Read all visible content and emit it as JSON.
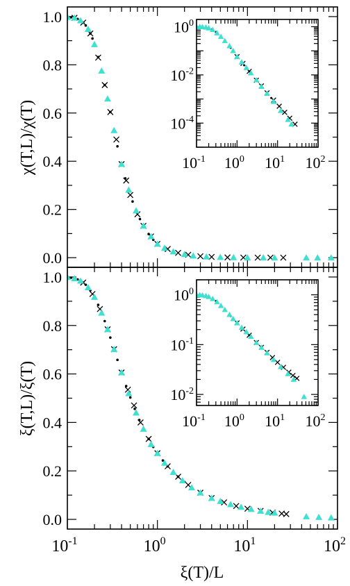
{
  "chart_data": [
    {
      "id": "top-main",
      "type": "scatter",
      "title": "",
      "xlabel": "",
      "ylabel": "χ(T,L)/χ(T)",
      "xscale": "log",
      "xlim": [
        0.1,
        100
      ],
      "ylim": [
        -0.04,
        1.04
      ],
      "y_tick_labels": [
        "0.0",
        "0.2",
        "0.4",
        "0.6",
        "0.8",
        "1.0"
      ],
      "y_tick_values": [
        0,
        0.2,
        0.4,
        0.6,
        0.8,
        1.0
      ],
      "grid": false,
      "legend": "none",
      "series": [
        {
          "marker": "dot",
          "color": "#000000",
          "x": [
            0.1,
            0.11,
            0.12,
            0.13,
            0.14,
            0.15,
            0.16,
            0.17,
            0.18,
            0.19,
            0.2,
            0.22,
            0.24,
            0.26,
            0.28,
            0.3,
            0.33,
            0.36,
            0.4,
            0.44,
            0.48,
            0.53,
            0.58,
            0.64,
            0.7,
            0.8,
            0.9,
            1.0
          ],
          "y": [
            0.998,
            0.997,
            0.995,
            0.99,
            0.984,
            0.975,
            0.963,
            0.948,
            0.93,
            0.909,
            0.885,
            0.832,
            0.775,
            0.716,
            0.659,
            0.604,
            0.528,
            0.462,
            0.388,
            0.329,
            0.281,
            0.233,
            0.195,
            0.16,
            0.132,
            0.098,
            0.074,
            0.057
          ]
        },
        {
          "marker": "cross",
          "color": "#000000",
          "x": [
            0.12,
            0.15,
            0.18,
            0.22,
            0.26,
            0.3,
            0.35,
            0.4,
            0.45,
            0.5,
            0.6,
            0.7,
            0.85,
            1.0,
            1.3,
            1.7,
            2.2,
            3.0,
            4.0,
            6.0,
            9.0,
            13,
            18,
            25
          ],
          "y": [
            0.995,
            0.975,
            0.93,
            0.83,
            0.716,
            0.604,
            0.49,
            0.388,
            0.32,
            0.26,
            0.18,
            0.132,
            0.088,
            0.057,
            0.036,
            0.02,
            0.012,
            0.006,
            0.003,
            0.001,
            0.0005,
            0.0002,
            0.0001,
            0.0001
          ]
        },
        {
          "marker": "triangle",
          "color": "#40e0d0",
          "x": [
            0.1,
            0.12,
            0.14,
            0.17,
            0.2,
            0.24,
            0.28,
            0.33,
            0.4,
            0.48,
            0.58,
            0.7,
            0.85,
            1.0,
            1.2,
            1.5,
            2.0,
            2.5,
            3.5,
            5.0,
            7.0,
            10,
            15,
            20,
            45,
            60,
            85
          ],
          "y": [
            0.998,
            0.995,
            0.984,
            0.948,
            0.885,
            0.775,
            0.659,
            0.528,
            0.388,
            0.281,
            0.195,
            0.132,
            0.088,
            0.057,
            0.04,
            0.025,
            0.014,
            0.008,
            0.004,
            0.002,
            0.001,
            0.0005,
            0.0002,
            0.0001,
            0.0,
            0.0,
            0.0
          ]
        }
      ]
    },
    {
      "id": "top-inset",
      "type": "scatter",
      "xscale": "log",
      "yscale": "log",
      "xlim": [
        0.1,
        100
      ],
      "ylim": [
        1e-05,
        2
      ],
      "x_tick_labels": [
        "10",
        "10",
        "10",
        "10"
      ],
      "x_tick_exponents": [
        "-1",
        "0",
        "1",
        "2"
      ],
      "y_tick_labels": [
        "10",
        "10",
        "10"
      ],
      "y_tick_exponents": [
        "0",
        "-2",
        "-4"
      ],
      "series": [
        {
          "marker": "dot",
          "color": "#000000",
          "x": [
            0.1,
            0.12,
            0.14,
            0.17,
            0.2,
            0.24,
            0.3,
            0.4,
            0.5,
            0.7,
            1.0,
            1.5,
            2.0,
            3.0,
            4.0,
            5.5,
            7.0
          ],
          "y": [
            0.998,
            0.995,
            0.984,
            0.948,
            0.885,
            0.775,
            0.604,
            0.388,
            0.26,
            0.132,
            0.057,
            0.025,
            0.014,
            0.006,
            0.0035,
            0.0018,
            0.0011
          ]
        },
        {
          "marker": "cross",
          "color": "#000000",
          "x": [
            1.0,
            1.4,
            2.0,
            3.0,
            4.0,
            5.5,
            8.0,
            11,
            15,
            20,
            27
          ],
          "y": [
            0.057,
            0.03,
            0.014,
            0.006,
            0.0035,
            0.0018,
            0.0009,
            0.0005,
            0.00028,
            0.00016,
            9e-05
          ]
        },
        {
          "marker": "triangle",
          "color": "#40e0d0",
          "x": [
            0.1,
            0.12,
            0.14,
            0.17,
            0.2,
            0.25,
            0.32,
            0.4,
            0.5,
            0.65,
            0.8,
            1.0,
            1.3,
            1.7,
            2.2,
            3.0,
            4.0,
            5.5,
            8.0,
            12,
            18,
            22
          ],
          "y": [
            0.998,
            0.995,
            0.984,
            0.948,
            0.885,
            0.75,
            0.55,
            0.388,
            0.26,
            0.16,
            0.1,
            0.057,
            0.034,
            0.02,
            0.012,
            0.0062,
            0.0033,
            0.0017,
            0.00078,
            0.00033,
            0.00014,
            9e-05
          ]
        }
      ]
    },
    {
      "id": "bottom-main",
      "type": "scatter",
      "title": "",
      "xlabel": "ξ(T)/L",
      "ylabel": "ξ(T,L)/ξ(T)",
      "xscale": "log",
      "xlim": [
        0.1,
        100
      ],
      "ylim": [
        -0.04,
        1.04
      ],
      "x_tick_labels": [
        "10",
        "10",
        "10",
        "10"
      ],
      "x_tick_exponents": [
        "-1",
        "0",
        "1",
        "2"
      ],
      "y_tick_labels": [
        "0.0",
        "0.2",
        "0.4",
        "0.6",
        "0.8",
        "1.0"
      ],
      "y_tick_values": [
        0,
        0.2,
        0.4,
        0.6,
        0.8,
        1.0
      ],
      "grid": false,
      "legend": "none",
      "series": [
        {
          "marker": "dot",
          "color": "#000000",
          "x": [
            0.1,
            0.11,
            0.12,
            0.13,
            0.14,
            0.15,
            0.16,
            0.17,
            0.18,
            0.2,
            0.22,
            0.24,
            0.26,
            0.28,
            0.3,
            0.33,
            0.36,
            0.4,
            0.45,
            0.5,
            0.56,
            0.63,
            0.7,
            0.8,
            0.9,
            1.0,
            1.15,
            1.3,
            1.5,
            1.7,
            2.0
          ],
          "y": [
            0.999,
            0.997,
            0.994,
            0.99,
            0.984,
            0.977,
            0.968,
            0.957,
            0.945,
            0.917,
            0.885,
            0.852,
            0.818,
            0.784,
            0.75,
            0.702,
            0.658,
            0.606,
            0.55,
            0.503,
            0.456,
            0.41,
            0.373,
            0.332,
            0.299,
            0.273,
            0.243,
            0.219,
            0.195,
            0.176,
            0.154
          ]
        },
        {
          "marker": "cross",
          "color": "#000000",
          "x": [
            0.15,
            0.19,
            0.23,
            0.28,
            0.33,
            0.4,
            0.47,
            0.55,
            0.65,
            0.8,
            1.0,
            1.3,
            1.7,
            2.2,
            3.0,
            4.0,
            5.5,
            7.5,
            10,
            14,
            19,
            24,
            27
          ],
          "y": [
            0.977,
            0.93,
            0.868,
            0.784,
            0.702,
            0.606,
            0.535,
            0.47,
            0.4,
            0.332,
            0.273,
            0.219,
            0.176,
            0.142,
            0.11,
            0.088,
            0.07,
            0.055,
            0.044,
            0.035,
            0.028,
            0.024,
            0.022
          ]
        },
        {
          "marker": "triangle",
          "color": "#40e0d0",
          "x": [
            0.1,
            0.12,
            0.14,
            0.17,
            0.2,
            0.24,
            0.28,
            0.33,
            0.4,
            0.48,
            0.58,
            0.7,
            0.85,
            1.0,
            1.2,
            1.5,
            1.9,
            2.4,
            3.0,
            4.0,
            5.0,
            6.5,
            8.5,
            11,
            14,
            17,
            20,
            45,
            62,
            85
          ],
          "y": [
            0.999,
            0.994,
            0.984,
            0.957,
            0.917,
            0.852,
            0.784,
            0.702,
            0.606,
            0.52,
            0.44,
            0.373,
            0.31,
            0.273,
            0.233,
            0.195,
            0.16,
            0.131,
            0.11,
            0.088,
            0.075,
            0.062,
            0.051,
            0.042,
            0.035,
            0.03,
            0.027,
            0.012,
            0.009,
            0.007
          ]
        }
      ]
    },
    {
      "id": "bottom-inset",
      "type": "scatter",
      "xscale": "log",
      "yscale": "log",
      "xlim": [
        0.1,
        100
      ],
      "ylim": [
        0.006,
        2
      ],
      "x_tick_labels": [
        "10",
        "10",
        "10",
        "10"
      ],
      "x_tick_exponents": [
        "-1",
        "0",
        "1",
        "2"
      ],
      "y_tick_labels": [
        "10",
        "10",
        "10"
      ],
      "y_tick_exponents": [
        "0",
        "-1",
        "-2"
      ],
      "series": [
        {
          "marker": "dot",
          "color": "#000000",
          "x": [
            0.1,
            0.12,
            0.14,
            0.17,
            0.2,
            0.25,
            0.3,
            0.4,
            0.5,
            0.7,
            1.0,
            1.4,
            2.0,
            3.0,
            4.0,
            5.5
          ],
          "y": [
            0.999,
            0.994,
            0.984,
            0.957,
            0.917,
            0.835,
            0.75,
            0.606,
            0.503,
            0.373,
            0.273,
            0.205,
            0.154,
            0.11,
            0.088,
            0.07
          ]
        },
        {
          "marker": "cross",
          "color": "#000000",
          "x": [
            1.0,
            1.4,
            2.0,
            3.0,
            4.0,
            5.5,
            7.5,
            10,
            14,
            19,
            24,
            30
          ],
          "y": [
            0.273,
            0.205,
            0.154,
            0.11,
            0.088,
            0.07,
            0.055,
            0.044,
            0.035,
            0.028,
            0.024,
            0.021
          ]
        },
        {
          "marker": "triangle",
          "color": "#40e0d0",
          "x": [
            0.1,
            0.12,
            0.14,
            0.17,
            0.2,
            0.25,
            0.32,
            0.4,
            0.5,
            0.65,
            0.8,
            1.0,
            1.3,
            1.7,
            2.2,
            3.0,
            4.0,
            5.5,
            8.0,
            12,
            18,
            25,
            45
          ],
          "y": [
            0.999,
            0.994,
            0.984,
            0.957,
            0.917,
            0.835,
            0.72,
            0.606,
            0.503,
            0.4,
            0.33,
            0.273,
            0.22,
            0.18,
            0.145,
            0.11,
            0.088,
            0.068,
            0.05,
            0.036,
            0.026,
            0.02,
            0.009
          ]
        }
      ]
    }
  ]
}
